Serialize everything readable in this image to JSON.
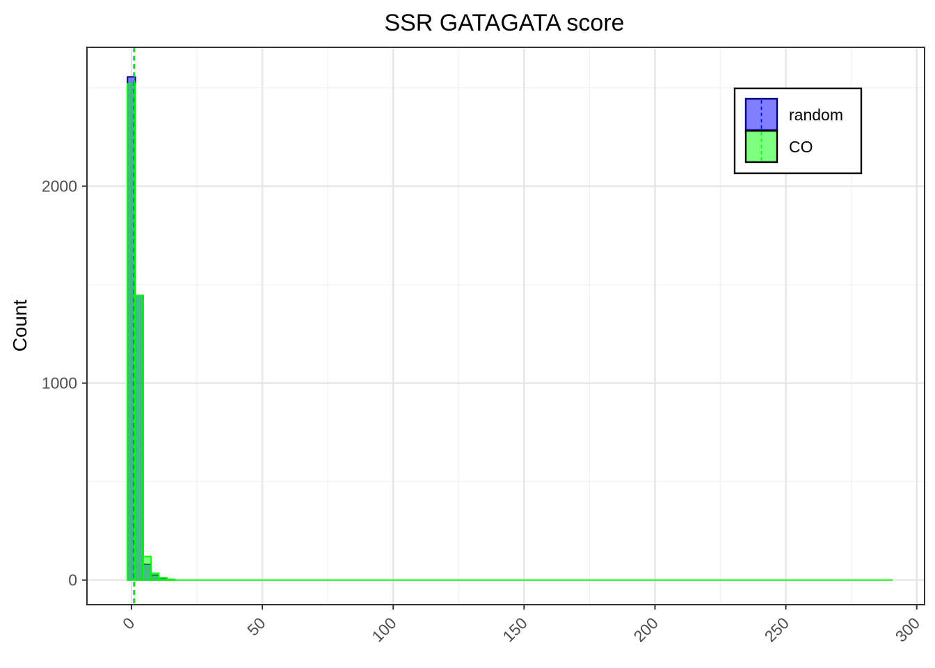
{
  "chart_data": {
    "type": "histogram",
    "title": "SSR GATAGATA score",
    "xlabel": "",
    "ylabel": "Count",
    "xlim": [
      -17,
      303
    ],
    "ylim": [
      -125,
      2705
    ],
    "x_ticks": [
      0,
      50,
      100,
      150,
      200,
      250,
      300
    ],
    "y_ticks": [
      0,
      1000,
      2000
    ],
    "x_tick_labels": [
      "0",
      "50",
      "100",
      "150",
      "200",
      "250",
      "300"
    ],
    "y_tick_labels": [
      "0",
      "1000",
      "2000"
    ],
    "bin_width": 3,
    "grid": true,
    "legend_position": "top-right",
    "series": [
      {
        "name": "random",
        "fill": "#0000ff",
        "fill_opacity": 0.5,
        "stroke": "#000080",
        "mean": 1.0,
        "bins": [
          {
            "x0": -1.5,
            "x1": 1.5,
            "count": 2555
          },
          {
            "x0": 1.5,
            "x1": 4.5,
            "count": 1445
          },
          {
            "x0": 4.5,
            "x1": 7.5,
            "count": 80
          },
          {
            "x0": 7.5,
            "x1": 10.5,
            "count": 25
          },
          {
            "x0": 10.5,
            "x1": 13.5,
            "count": 10
          },
          {
            "x0": 13.5,
            "x1": 16.5,
            "count": 3
          }
        ]
      },
      {
        "name": "CO",
        "fill": "#00ff00",
        "fill_opacity": 0.5,
        "stroke": "#00ff00",
        "mean": 1.2,
        "bins": [
          {
            "x0": -1.5,
            "x1": 1.5,
            "count": 2520
          },
          {
            "x0": 1.5,
            "x1": 4.5,
            "count": 1445
          },
          {
            "x0": 4.5,
            "x1": 7.5,
            "count": 120
          },
          {
            "x0": 7.5,
            "x1": 10.5,
            "count": 35
          },
          {
            "x0": 10.5,
            "x1": 13.5,
            "count": 12
          },
          {
            "x0": 13.5,
            "x1": 16.5,
            "count": 4
          },
          {
            "x0": 16.5,
            "x1": 290.5,
            "count": 0
          }
        ]
      }
    ],
    "legend": [
      {
        "label": "random",
        "fill": "#0000ff",
        "stroke": "#000080",
        "line": "#0000ff"
      },
      {
        "label": "CO",
        "fill": "#00ff00",
        "stroke": "#000000",
        "line": "#00ff00"
      }
    ]
  }
}
